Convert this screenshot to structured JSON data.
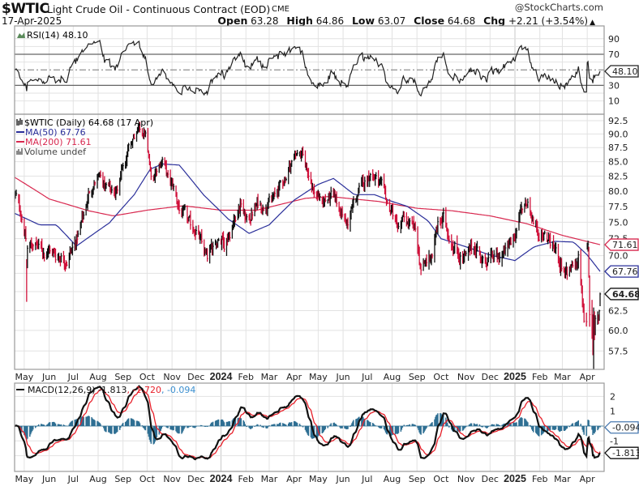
{
  "header": {
    "symbol": "$WTIC",
    "name": "Light Crude Oil - Continuous Contract (EOD)",
    "exchange": "CME",
    "date": "17-Apr-2025",
    "copyright": "@StockCharts.com",
    "open_label": "Open",
    "open": "63.28",
    "high_label": "High",
    "high": "64.86",
    "low_label": "Low",
    "low": "63.07",
    "close_label": "Close",
    "close": "64.68",
    "chg_label": "Chg",
    "chg": "+2.21 (+3.54%)",
    "arrow": "▲"
  },
  "rsi": {
    "label": "RSI(14) 48.10",
    "tag": "48.10",
    "ticks": [
      "90",
      "70",
      "30",
      "10"
    ]
  },
  "price": {
    "label": "$WTIC (Daily) 64.68 (17 Apr)",
    "ma50_label": "MA(50) 67.76",
    "ma200_label": "MA(200) 71.61",
    "volume_label": "Volume undef",
    "tags": {
      "ma200": "71.61",
      "ma50": "67.76",
      "close": "64.68"
    },
    "ticks": [
      "92.5",
      "90.0",
      "87.5",
      "85.0",
      "82.5",
      "80.0",
      "77.5",
      "75.0",
      "72.5",
      "70.0",
      "62.5",
      "60.0",
      "57.5"
    ]
  },
  "macd": {
    "label": "MACD(12,26,9) -1.813",
    "signal_label": ", -1.720",
    "hist_label": ", -0.094",
    "tags": {
      "hist": "-0.094",
      "macd": "-1.813"
    },
    "ticks": [
      "2",
      "1",
      "-1"
    ]
  },
  "axis": {
    "months": [
      {
        "label": "May",
        "date": "2023-05-01"
      },
      {
        "label": "Jun",
        "date": "2023-06-01"
      },
      {
        "label": "Jul",
        "date": "2023-07-01"
      },
      {
        "label": "Aug",
        "date": "2023-08-01"
      },
      {
        "label": "Sep",
        "date": "2023-09-01"
      },
      {
        "label": "Oct",
        "date": "2023-10-01"
      },
      {
        "label": "Nov",
        "date": "2023-11-01"
      },
      {
        "label": "Dec",
        "date": "2023-12-01"
      },
      {
        "label": "2024",
        "date": "2024-01-01",
        "bold": true
      },
      {
        "label": "Feb",
        "date": "2024-02-01"
      },
      {
        "label": "Mar",
        "date": "2024-03-01"
      },
      {
        "label": "Apr",
        "date": "2024-04-01"
      },
      {
        "label": "May",
        "date": "2024-05-01"
      },
      {
        "label": "Jun",
        "date": "2024-06-01"
      },
      {
        "label": "Jul",
        "date": "2024-07-01"
      },
      {
        "label": "Aug",
        "date": "2024-08-01"
      },
      {
        "label": "Sep",
        "date": "2024-09-01"
      },
      {
        "label": "Oct",
        "date": "2024-10-01"
      },
      {
        "label": "Nov",
        "date": "2024-11-01"
      },
      {
        "label": "Dec",
        "date": "2024-12-01"
      },
      {
        "label": "2025",
        "date": "2025-01-01",
        "bold": true
      },
      {
        "label": "Feb",
        "date": "2025-02-01"
      },
      {
        "label": "Mar",
        "date": "2025-03-01"
      },
      {
        "label": "Apr",
        "date": "2025-04-01"
      }
    ]
  },
  "colors": {
    "up": "#111111",
    "down": "#d0103a",
    "ma50": "#2a2f9a",
    "ma200": "#d8284f",
    "rsi": "#222222",
    "macd": "#111111",
    "signal": "#e8202a",
    "hist": "#2e6f93",
    "grid": "#e2e2e2",
    "border": "#9a9a9a"
  },
  "chart_data": {
    "type": "ohlc",
    "title": "$WTIC Light Crude Oil - Continuous Contract (EOD)",
    "scale": "log",
    "ylim": [
      55,
      94
    ],
    "start": "2023-04-19",
    "end": "2025-04-17",
    "weekly_start": "2023-04-21",
    "weekly_close": [
      79,
      76,
      71,
      72,
      71,
      70.5,
      71,
      70,
      70,
      69.5,
      71,
      73,
      76,
      80,
      81.5,
      82,
      80,
      80,
      80.5,
      85,
      87,
      89.5,
      90.5,
      90,
      82,
      84,
      85.5,
      82,
      80.5,
      77,
      76,
      74.5,
      74,
      71.5,
      69.5,
      71.5,
      73,
      72,
      73.5,
      76,
      78,
      75,
      76.5,
      78,
      77.5,
      78.5,
      79,
      81,
      82.5,
      85,
      87,
      85.5,
      83,
      80,
      78.5,
      78.5,
      79,
      78,
      76.5,
      74.5,
      78,
      80,
      81.5,
      83,
      82,
      80.5,
      78,
      76.5,
      74,
      75.5,
      74.5,
      73.5,
      68,
      69,
      70.5,
      74.5,
      75.5,
      73,
      71.5,
      70,
      69.5,
      71,
      71.5,
      69,
      69.5,
      69.5,
      70,
      70.5,
      72,
      74,
      77.5,
      78.5,
      75,
      73.5,
      73,
      72,
      70.5,
      68.5,
      67,
      68,
      69.5,
      61.5,
      61.5,
      64.68
    ],
    "daily_ohlc": [
      [
        "2023-05-04",
        68.6,
        69.5,
        63.64,
        68.56
      ],
      [
        "2025-04-01",
        71.4,
        71.9,
        70.9,
        71.2
      ],
      [
        "2025-04-02",
        71.2,
        72.2,
        70.6,
        71.71
      ],
      [
        "2025-04-03",
        71.0,
        71.3,
        66.9,
        66.95
      ],
      [
        "2025-04-04",
        66.9,
        67.2,
        60.45,
        61.99
      ],
      [
        "2025-04-07",
        61.0,
        63.9,
        58.95,
        60.7
      ],
      [
        "2025-04-08",
        61.3,
        62.0,
        57.0,
        57.58
      ],
      [
        "2025-04-09",
        58.0,
        62.9,
        55.12,
        62.35
      ],
      [
        "2025-04-10",
        62.0,
        62.4,
        58.8,
        60.07
      ],
      [
        "2025-04-11",
        60.0,
        61.9,
        59.4,
        61.5
      ],
      [
        "2025-04-14",
        61.6,
        62.4,
        60.7,
        61.53
      ],
      [
        "2025-04-15",
        61.5,
        62.0,
        60.8,
        61.33
      ],
      [
        "2025-04-16",
        61.4,
        62.6,
        61.2,
        62.47
      ],
      [
        "2025-04-17",
        63.28,
        64.86,
        63.07,
        64.68
      ]
    ],
    "ma50": [
      [
        "2023-04-19",
        76.4
      ],
      [
        "2023-05-20",
        74.6
      ],
      [
        "2023-06-10",
        74.6
      ],
      [
        "2023-07-05",
        71.4
      ],
      [
        "2023-08-15",
        74.9
      ],
      [
        "2023-09-15",
        79.4
      ],
      [
        "2023-10-05",
        83.7
      ],
      [
        "2023-10-20",
        84.6
      ],
      [
        "2023-11-10",
        84.4
      ],
      [
        "2023-12-10",
        79.4
      ],
      [
        "2024-01-10",
        75.5
      ],
      [
        "2024-02-05",
        73.3
      ],
      [
        "2024-03-01",
        74.6
      ],
      [
        "2024-04-01",
        78.5
      ],
      [
        "2024-05-01",
        81.1
      ],
      [
        "2024-05-20",
        82.1
      ],
      [
        "2024-06-15",
        79.4
      ],
      [
        "2024-07-10",
        79.4
      ],
      [
        "2024-08-01",
        78.3
      ],
      [
        "2024-08-20",
        77.5
      ],
      [
        "2024-09-15",
        75.2
      ],
      [
        "2024-10-01",
        72.5
      ],
      [
        "2024-11-01",
        71.3
      ],
      [
        "2024-12-01",
        70.1
      ],
      [
        "2025-01-01",
        69.3
      ],
      [
        "2025-01-25",
        71.3
      ],
      [
        "2025-02-20",
        72.1
      ],
      [
        "2025-03-15",
        72.0
      ],
      [
        "2025-04-01",
        70.1
      ],
      [
        "2025-04-17",
        67.76
      ]
    ],
    "ma200": [
      [
        "2023-04-19",
        82.3
      ],
      [
        "2023-06-01",
        78.7
      ],
      [
        "2023-07-20",
        76.8
      ],
      [
        "2023-08-20",
        76.0
      ],
      [
        "2023-10-01",
        76.9
      ],
      [
        "2023-11-15",
        77.6
      ],
      [
        "2024-01-01",
        76.9
      ],
      [
        "2024-02-15",
        76.9
      ],
      [
        "2024-04-15",
        78.8
      ],
      [
        "2024-05-15",
        79.1
      ],
      [
        "2024-07-15",
        78.3
      ],
      [
        "2024-09-01",
        77.2
      ],
      [
        "2024-10-15",
        76.8
      ],
      [
        "2024-12-01",
        76.0
      ],
      [
        "2025-01-15",
        74.8
      ],
      [
        "2025-03-01",
        73.0
      ],
      [
        "2025-04-17",
        71.61
      ]
    ],
    "rsi": {
      "period": 14,
      "ylim": [
        0,
        100
      ],
      "levels": [
        30,
        50,
        70
      ],
      "last": 48.1
    },
    "macd": {
      "params": [
        12,
        26,
        9
      ],
      "ylim": [
        -2.9,
        2.9
      ],
      "last": [
        -1.813,
        -1.72,
        -0.094
      ]
    }
  }
}
